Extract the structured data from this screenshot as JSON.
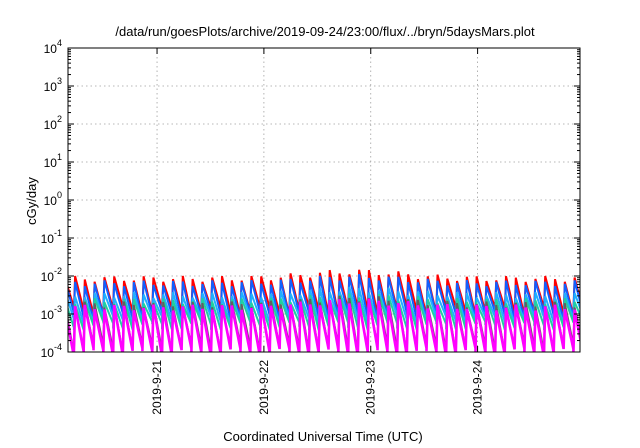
{
  "chart_data": {
    "type": "line",
    "title": "/data/run/goesPlots/archive/2019-09-24/23:00/flux/../bryn/5daysMars.plot",
    "xlabel": "Coordinated Universal Time (UTC)",
    "ylabel": "cGy/day",
    "yscale": "log",
    "ylim": [
      0.0001,
      10000
    ],
    "y_ticks": [
      {
        "value": 0.0001,
        "base": "10",
        "exp": "-4"
      },
      {
        "value": 0.001,
        "base": "10",
        "exp": "-3"
      },
      {
        "value": 0.01,
        "base": "10",
        "exp": "-2"
      },
      {
        "value": 0.1,
        "base": "10",
        "exp": "-1"
      },
      {
        "value": 1,
        "base": "10",
        "exp": "0"
      },
      {
        "value": 10,
        "base": "10",
        "exp": "1"
      },
      {
        "value": 100,
        "base": "10",
        "exp": "2"
      },
      {
        "value": 1000,
        "base": "10",
        "exp": "3"
      },
      {
        "value": 10000,
        "base": "10",
        "exp": "4"
      }
    ],
    "xlim": [
      "2019-09-20 04:00",
      "2019-09-24 23:00"
    ],
    "x_ticks": [
      {
        "label": "2019-9-21",
        "value": "2019-09-21 00:00"
      },
      {
        "label": "2019-9-22",
        "value": "2019-09-22 00:00"
      },
      {
        "label": "2019-9-23",
        "value": "2019-09-23 00:00"
      },
      {
        "label": "2019-9-24",
        "value": "2019-09-24 00:00"
      }
    ],
    "grid": true,
    "sawtooth": {
      "period_hours": 2.2,
      "description": "Each series rises abruptly then decays until the next rise"
    },
    "series": [
      {
        "color": "#ff0000",
        "peak": 0.0085,
        "trough": 0.0012,
        "peak_mid": 0.013
      },
      {
        "color": "#1060ff",
        "peak": 0.0065,
        "trough": 0.0009,
        "peak_mid": 0.0095
      },
      {
        "color": "#20b0ff",
        "peak": 0.0032,
        "trough": 0.0007,
        "peak_mid": 0.0045
      },
      {
        "color": "#20d0a0",
        "peak": 0.0022,
        "trough": 0.0005,
        "peak_mid": 0.003
      },
      {
        "color": "#606060",
        "peak": 0.0018,
        "trough": 0.00012,
        "peak_mid": 0.0026
      },
      {
        "color": "#ff00ff",
        "peak": 0.0015,
        "trough": 0.0001,
        "peak_mid": 0.0022
      }
    ]
  }
}
